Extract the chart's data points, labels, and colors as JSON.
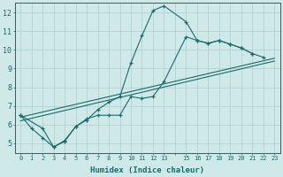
{
  "xlabel": "Humidex (Indice chaleur)",
  "xlim": [
    -0.5,
    23.5
  ],
  "ylim": [
    4.5,
    12.5
  ],
  "yticks": [
    5,
    6,
    7,
    8,
    9,
    10,
    11,
    12
  ],
  "xticks": [
    0,
    1,
    2,
    3,
    4,
    5,
    6,
    7,
    8,
    9,
    10,
    11,
    12,
    13,
    14,
    15,
    16,
    17,
    18,
    19,
    20,
    21,
    22,
    23
  ],
  "xtick_labels": [
    "0",
    "1",
    "2",
    "3",
    "4",
    "5",
    "6",
    "7",
    "8",
    "9",
    "10",
    "11",
    "12",
    "13",
    "",
    "15",
    "16",
    "17",
    "18",
    "19",
    "20",
    "21",
    "22",
    "23"
  ],
  "bg_color": "#cfe8e8",
  "grid_color": "#aecece",
  "line_color": "#1a6b6b",
  "s1x": [
    0,
    1,
    2,
    3,
    4,
    5,
    6,
    7,
    8,
    9,
    10,
    11,
    12,
    13,
    15,
    16,
    17,
    18,
    19,
    20,
    21
  ],
  "s1y": [
    6.5,
    5.8,
    5.3,
    4.8,
    5.1,
    5.9,
    6.3,
    6.5,
    6.5,
    6.5,
    7.5,
    7.4,
    7.5,
    8.3,
    10.7,
    10.5,
    10.35,
    10.5,
    10.3,
    10.1,
    9.8
  ],
  "s2x": [
    0,
    2,
    3,
    4,
    5,
    6,
    7,
    8,
    9,
    10,
    11,
    12,
    13,
    15,
    16,
    17,
    18,
    19,
    20,
    21,
    22
  ],
  "s2y": [
    6.5,
    5.8,
    4.8,
    5.15,
    5.9,
    6.25,
    6.8,
    7.2,
    7.5,
    9.3,
    10.75,
    12.1,
    12.35,
    11.5,
    10.5,
    10.35,
    10.5,
    10.3,
    10.1,
    9.8,
    9.6
  ],
  "s3x": [
    0,
    23
  ],
  "s3y": [
    6.4,
    9.55
  ],
  "s4x": [
    0,
    23
  ],
  "s4y": [
    6.2,
    9.4
  ]
}
